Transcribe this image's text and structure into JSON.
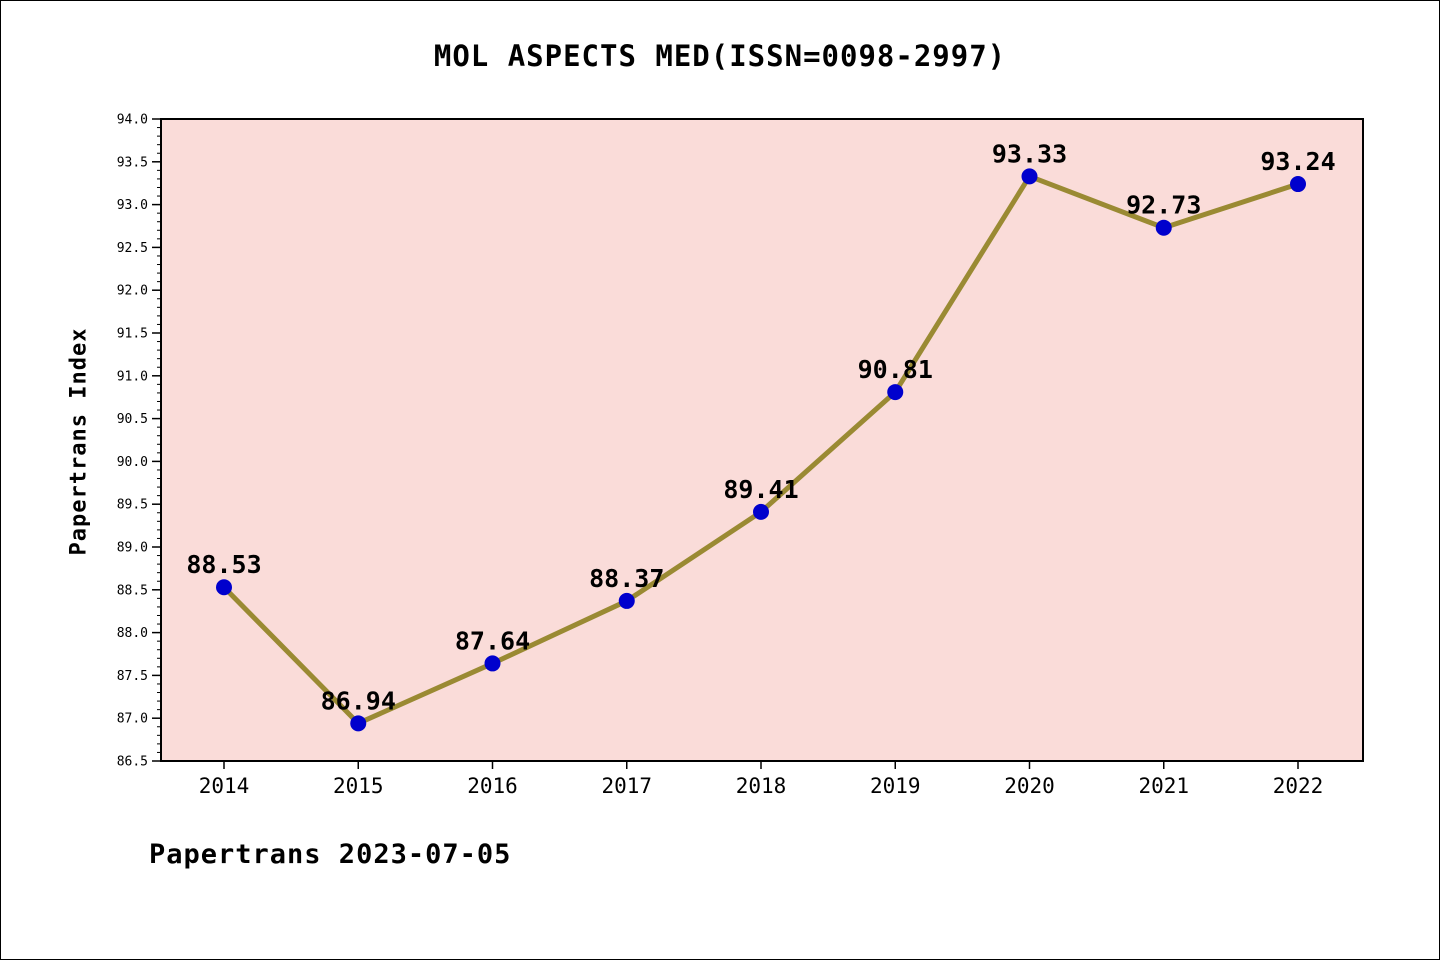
{
  "title": "MOL ASPECTS MED(ISSN=0098-2997)",
  "footer": "Papertrans 2023-07-05",
  "chart_data": {
    "type": "line",
    "title": "MOL ASPECTS MED(ISSN=0098-2997)",
    "xlabel": "",
    "ylabel": "Papertrans Index",
    "categories": [
      "2014",
      "2015",
      "2016",
      "2017",
      "2018",
      "2019",
      "2020",
      "2021",
      "2022"
    ],
    "values": [
      88.53,
      86.94,
      87.64,
      88.37,
      89.41,
      90.81,
      93.33,
      92.73,
      93.24
    ],
    "ylim": [
      86.5,
      94.0
    ],
    "ytick_step": 0.5,
    "yminor_step": 0.1,
    "grid": false,
    "legend_position": "none",
    "colors": {
      "line": "#9a8a33",
      "marker": "#0000cd",
      "plot_bg": "#fadcd9",
      "axis": "#000000",
      "text": "#000000"
    }
  }
}
